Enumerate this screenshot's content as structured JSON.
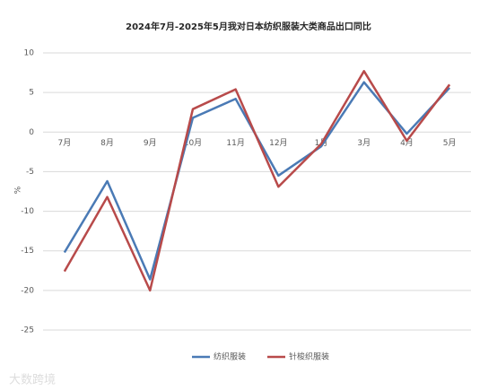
{
  "chart_data": {
    "type": "line",
    "title": "2024年7月-2025年5月我对日本纺织服装大类商品出口同比",
    "y_label": "%",
    "categories": [
      "7月",
      "8月",
      "9月",
      "10月",
      "11月",
      "12月",
      "1月",
      "3月",
      "4月",
      "5月"
    ],
    "series": [
      {
        "name": "纺织服装",
        "color": "#4a7ab5",
        "values": [
          -15.2,
          -6.2,
          -18.6,
          1.8,
          4.2,
          -5.5,
          -1.8,
          6.3,
          -0.2,
          5.6
        ]
      },
      {
        "name": "针梭织服装",
        "color": "#b84a4a",
        "values": [
          -17.6,
          -8.2,
          -20.0,
          2.9,
          5.4,
          -6.9,
          -1.5,
          7.7,
          -1.1,
          6.0
        ]
      }
    ],
    "ylim": [
      -25,
      10
    ],
    "yticks": [
      -25,
      -20,
      -15,
      -10,
      -5,
      0,
      5,
      10
    ],
    "grid": true,
    "legend": "bottom",
    "watermark": "大数跨境"
  }
}
